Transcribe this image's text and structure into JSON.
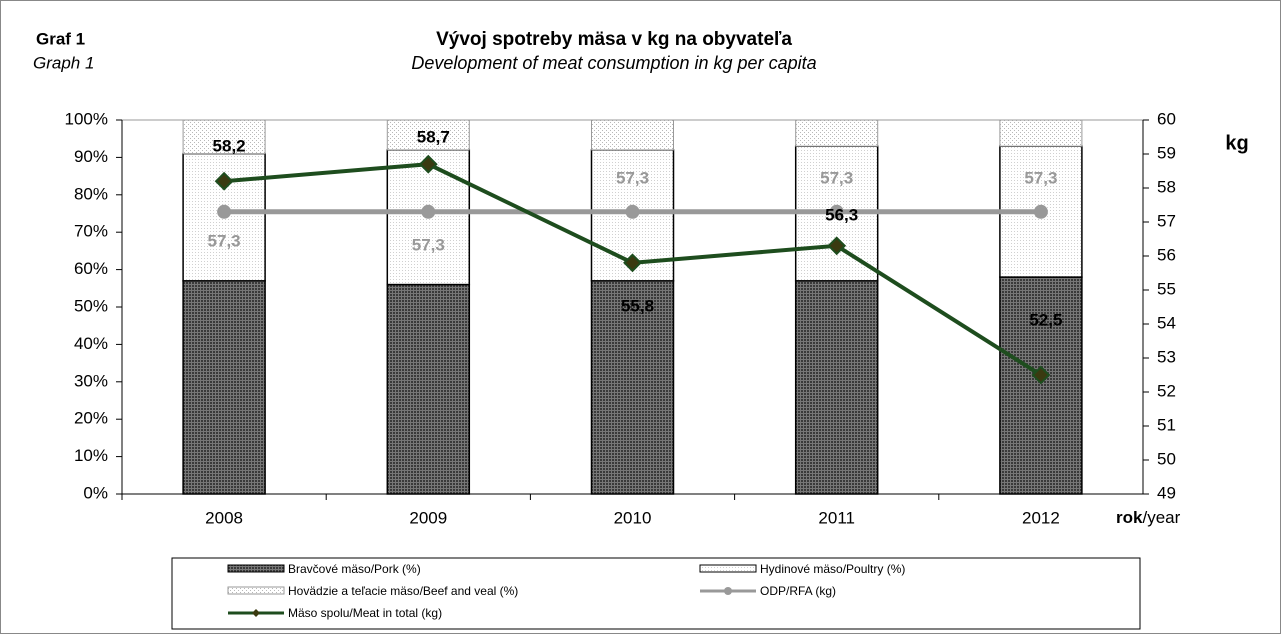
{
  "chart_data": {
    "type": "bar",
    "label": "Graf 1",
    "label_en": "Graph 1",
    "title": "Vývoj spotreby mäsa v kg na obyvateľa",
    "subtitle": "Development of meat consumption in kg per capita",
    "categories": [
      "2008",
      "2009",
      "2010",
      "2011",
      "2012"
    ],
    "x_label": {
      "bold": "rok",
      "rest": "/year"
    },
    "y2_label": "kg",
    "stacked": true,
    "series": [
      {
        "name": "Bravčové mäso/Pork (%)",
        "color": "#3a3a3a",
        "values": [
          57,
          56,
          57,
          57,
          58
        ]
      },
      {
        "name": "Hydinové mäso/Poultry (%)",
        "color": "#d0d0d0",
        "values": [
          34,
          36,
          35,
          36,
          35
        ]
      },
      {
        "name": "Hovädzie a teľacie mäso/Beef and veal (%)",
        "color": "#b8b8b8",
        "values": [
          9,
          8,
          8,
          7,
          7
        ]
      },
      {
        "name": "ODP/RFA (kg)",
        "type": "line",
        "axis": "y2",
        "color": "#999999",
        "values": [
          57.3,
          57.3,
          57.3,
          57.3,
          57.3
        ],
        "value_labels": [
          "57,3",
          "57,3",
          "57,3",
          "57,3",
          "57,3"
        ]
      },
      {
        "name": "Mäso spolu/Meat  in total (kg)",
        "type": "line",
        "axis": "y2",
        "color": "#1e4d1e",
        "values": [
          58.2,
          58.7,
          55.8,
          56.3,
          52.5
        ],
        "value_labels": [
          "58,2",
          "58,7",
          "55,8",
          "56,3",
          "52,5"
        ]
      }
    ],
    "ylim": [
      0,
      100
    ],
    "yticks": [
      {
        "value": 0,
        "label": "0%"
      },
      {
        "value": 10,
        "label": "10%"
      },
      {
        "value": 20,
        "label": "20%"
      },
      {
        "value": 30,
        "label": "30%"
      },
      {
        "value": 40,
        "label": "40%"
      },
      {
        "value": 50,
        "label": "50%"
      },
      {
        "value": 60,
        "label": "60%"
      },
      {
        "value": 70,
        "label": "70%"
      },
      {
        "value": 80,
        "label": "80%"
      },
      {
        "value": 90,
        "label": "90%"
      },
      {
        "value": 100,
        "label": "100%"
      }
    ],
    "y2lim": [
      49,
      60
    ],
    "y2ticks": [
      49,
      50,
      51,
      52,
      53,
      54,
      55,
      56,
      57,
      58,
      59,
      60
    ]
  }
}
